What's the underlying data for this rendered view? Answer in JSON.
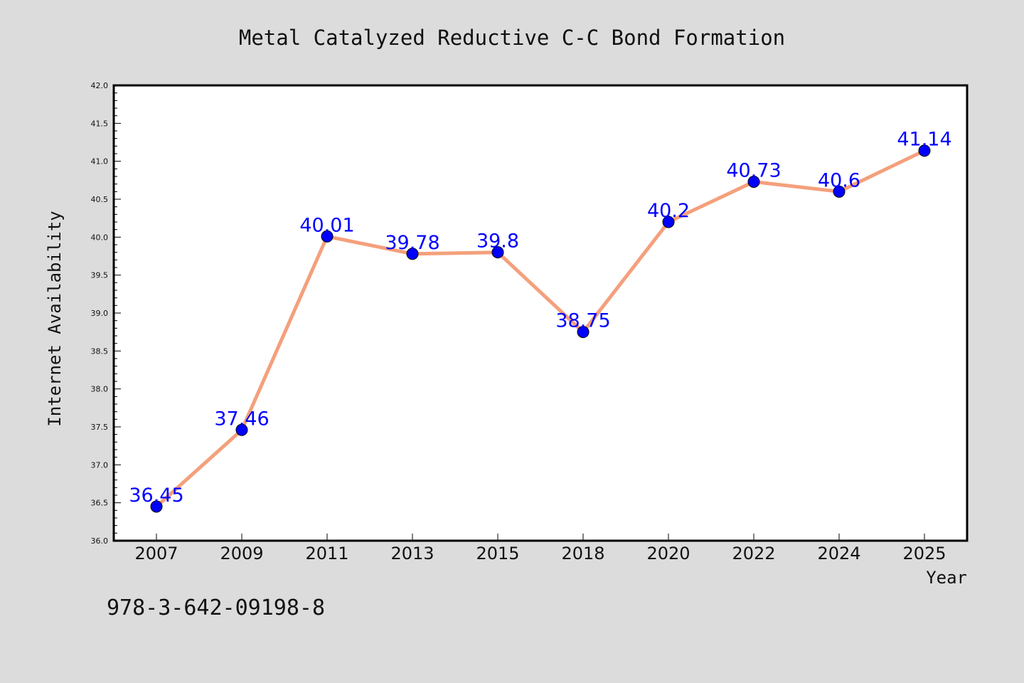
{
  "chart_data": {
    "type": "line",
    "title": "Metal Catalyzed Reductive C-C Bond Formation",
    "xlabel": "Year",
    "ylabel": "Internet Availability",
    "categories": [
      "2007",
      "2009",
      "2011",
      "2013",
      "2015",
      "2018",
      "2020",
      "2022",
      "2024",
      "2025"
    ],
    "series": [
      {
        "values": [
          36.45,
          37.46,
          40.01,
          39.78,
          39.8,
          38.75,
          40.2,
          40.73,
          40.6,
          41.14
        ],
        "data_labels": [
          "36.45",
          "37.46",
          "40.01",
          "39.78",
          "39.8",
          "38.75",
          "40.2",
          "40.73",
          "40.6",
          "41.14"
        ],
        "line_color": "#f4a07c",
        "marker_color": "#0000ff",
        "label_color": "#0000ff"
      }
    ],
    "ylim": [
      36.0,
      42.0
    ],
    "y_ticks": [
      "36.0",
      "36.5",
      "37.0",
      "37.5",
      "38.0",
      "38.5",
      "39.0",
      "39.5",
      "40.0",
      "40.5",
      "41.0",
      "41.5",
      "42.0"
    ],
    "grid": false,
    "legend": "none",
    "annotation": "978-3-642-09198-8",
    "background_color": "#dcdcdc",
    "plot_background_color": "#ffffff"
  }
}
